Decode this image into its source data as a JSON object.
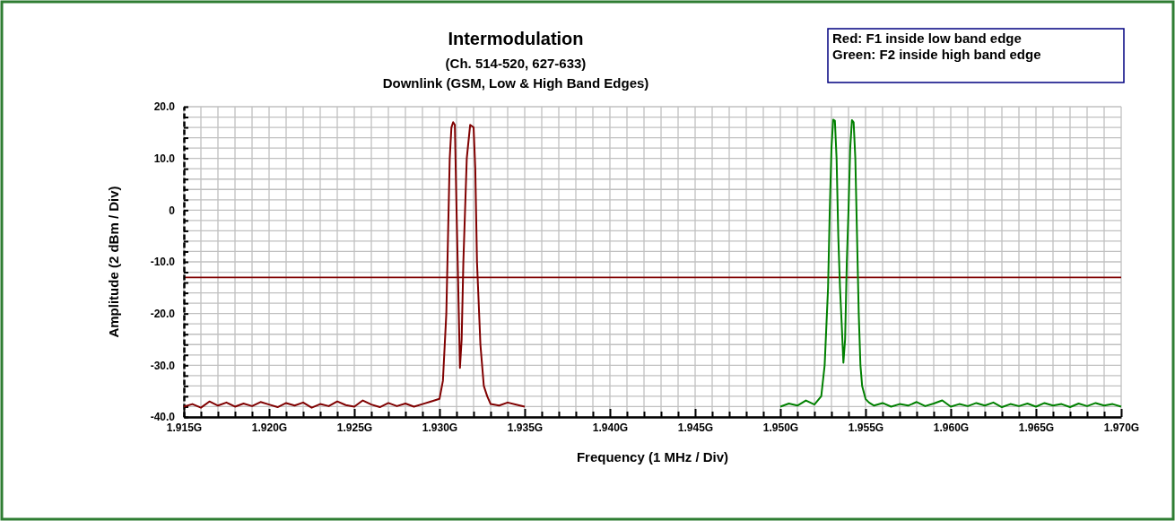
{
  "chart_data": {
    "type": "line",
    "title": "Intermodulation",
    "subtitle": "(Ch. 514-520, 627-633)\nDownlink (GSM, Low & High Band Edges)",
    "xlabel": "Frequency (1 MHz / Div)",
    "ylabel": "Amplitude (2 dBm / Div)",
    "annotations": [
      "Red: F1 inside low band edge",
      "Green: F2 inside high band edge"
    ],
    "xlim": [
      1.915,
      1.97
    ],
    "ylim": [
      -40,
      20
    ],
    "xticks": [
      {
        "value": 1.915,
        "label": "1.915G"
      },
      {
        "value": 1.916,
        "label": null
      },
      {
        "value": 1.917,
        "label": null
      },
      {
        "value": 1.918,
        "label": null
      },
      {
        "value": 1.919,
        "label": null
      },
      {
        "value": 1.92,
        "label": "1.920G"
      },
      {
        "value": 1.921,
        "label": null
      },
      {
        "value": 1.922,
        "label": null
      },
      {
        "value": 1.923,
        "label": null
      },
      {
        "value": 1.924,
        "label": null
      },
      {
        "value": 1.925,
        "label": "1.925G"
      },
      {
        "value": 1.926,
        "label": null
      },
      {
        "value": 1.927,
        "label": null
      },
      {
        "value": 1.928,
        "label": null
      },
      {
        "value": 1.929,
        "label": null
      },
      {
        "value": 1.93,
        "label": "1.930G"
      },
      {
        "value": 1.931,
        "label": null
      },
      {
        "value": 1.932,
        "label": null
      },
      {
        "value": 1.933,
        "label": null
      },
      {
        "value": 1.934,
        "label": null
      },
      {
        "value": 1.935,
        "label": "1.935G"
      },
      {
        "value": 1.936,
        "label": null
      },
      {
        "value": 1.937,
        "label": null
      },
      {
        "value": 1.938,
        "label": null
      },
      {
        "value": 1.939,
        "label": null
      },
      {
        "value": 1.94,
        "label": "1.940G"
      },
      {
        "value": 1.941,
        "label": null
      },
      {
        "value": 1.942,
        "label": null
      },
      {
        "value": 1.943,
        "label": null
      },
      {
        "value": 1.944,
        "label": null
      },
      {
        "value": 1.945,
        "label": "1.945G"
      },
      {
        "value": 1.946,
        "label": null
      },
      {
        "value": 1.947,
        "label": null
      },
      {
        "value": 1.948,
        "label": null
      },
      {
        "value": 1.949,
        "label": null
      },
      {
        "value": 1.95,
        "label": "1.950G"
      },
      {
        "value": 1.951,
        "label": null
      },
      {
        "value": 1.952,
        "label": null
      },
      {
        "value": 1.953,
        "label": null
      },
      {
        "value": 1.954,
        "label": null
      },
      {
        "value": 1.955,
        "label": "1.955G"
      },
      {
        "value": 1.956,
        "label": null
      },
      {
        "value": 1.957,
        "label": null
      },
      {
        "value": 1.958,
        "label": null
      },
      {
        "value": 1.959,
        "label": null
      },
      {
        "value": 1.96,
        "label": "1.960G"
      },
      {
        "value": 1.961,
        "label": null
      },
      {
        "value": 1.962,
        "label": null
      },
      {
        "value": 1.963,
        "label": null
      },
      {
        "value": 1.964,
        "label": null
      },
      {
        "value": 1.965,
        "label": "1.965G"
      },
      {
        "value": 1.966,
        "label": null
      },
      {
        "value": 1.967,
        "label": null
      },
      {
        "value": 1.968,
        "label": null
      },
      {
        "value": 1.969,
        "label": null
      },
      {
        "value": 1.97,
        "label": "1.970G"
      }
    ],
    "yticks": [
      {
        "value": -40,
        "label": "-40.0"
      },
      {
        "value": -38,
        "label": null
      },
      {
        "value": -36,
        "label": null
      },
      {
        "value": -34,
        "label": null
      },
      {
        "value": -32,
        "label": null
      },
      {
        "value": -30,
        "label": "-30.0"
      },
      {
        "value": -28,
        "label": null
      },
      {
        "value": -26,
        "label": null
      },
      {
        "value": -24,
        "label": null
      },
      {
        "value": -22,
        "label": null
      },
      {
        "value": -20,
        "label": "-20.0"
      },
      {
        "value": -18,
        "label": null
      },
      {
        "value": -16,
        "label": null
      },
      {
        "value": -14,
        "label": null
      },
      {
        "value": -12,
        "label": null
      },
      {
        "value": -10,
        "label": "-10.0"
      },
      {
        "value": -8,
        "label": null
      },
      {
        "value": -6,
        "label": null
      },
      {
        "value": -4,
        "label": null
      },
      {
        "value": -2,
        "label": null
      },
      {
        "value": 0,
        "label": "0"
      },
      {
        "value": 2,
        "label": null
      },
      {
        "value": 4,
        "label": null
      },
      {
        "value": 6,
        "label": null
      },
      {
        "value": 8,
        "label": null
      },
      {
        "value": 10,
        "label": "10.0"
      },
      {
        "value": 12,
        "label": null
      },
      {
        "value": 14,
        "label": null
      },
      {
        "value": 16,
        "label": null
      },
      {
        "value": 18,
        "label": null
      },
      {
        "value": 20,
        "label": "20.0"
      }
    ],
    "grid": true,
    "line_style": "solid",
    "marker": "none",
    "ref_lines": [
      {
        "axis": "y",
        "value": -13,
        "color": "#800000"
      }
    ],
    "series": [
      {
        "color": "#800000",
        "x": [
          1.915,
          1.9155,
          1.916,
          1.9165,
          1.917,
          1.9175,
          1.918,
          1.9185,
          1.919,
          1.9195,
          1.92,
          1.9205,
          1.921,
          1.9215,
          1.922,
          1.9225,
          1.923,
          1.9235,
          1.924,
          1.9245,
          1.925,
          1.9255,
          1.926,
          1.9265,
          1.927,
          1.9275,
          1.928,
          1.9285,
          1.929,
          1.9295,
          1.93,
          1.9302,
          1.9304,
          1.9305,
          1.9306,
          1.9307,
          1.9308,
          1.9309,
          1.931,
          1.9311,
          1.9312,
          1.9313,
          1.9314,
          1.9315,
          1.9316,
          1.9318,
          1.932,
          1.9321,
          1.9322,
          1.9324,
          1.9326,
          1.9328,
          1.933,
          1.9335,
          1.934,
          1.9345,
          1.935
        ],
        "values": [
          -38,
          -37.5,
          -38.2,
          -37,
          -37.8,
          -37.2,
          -38,
          -37.4,
          -37.9,
          -37.1,
          -37.6,
          -38.1,
          -37.3,
          -37.8,
          -37.2,
          -38.2,
          -37.5,
          -37.9,
          -37,
          -37.7,
          -38,
          -36.8,
          -37.6,
          -38.1,
          -37.3,
          -37.9,
          -37.4,
          -38,
          -37.5,
          -37,
          -36.5,
          -33,
          -20,
          -5,
          10,
          16,
          17,
          16.5,
          0,
          -15,
          -30.5,
          -25,
          -10,
          0,
          10,
          16.5,
          16,
          8,
          -10,
          -26,
          -34,
          -36,
          -37.5,
          -37.8,
          -37.2,
          -37.6,
          -38
        ]
      },
      {
        "color": "#008000",
        "x": [
          1.95,
          1.9505,
          1.951,
          1.9515,
          1.952,
          1.9524,
          1.9526,
          1.9528,
          1.9529,
          1.953,
          1.9531,
          1.9532,
          1.9533,
          1.9534,
          1.9535,
          1.9536,
          1.9537,
          1.9538,
          1.9539,
          1.954,
          1.9541,
          1.9542,
          1.9543,
          1.9544,
          1.9545,
          1.9546,
          1.9547,
          1.9548,
          1.955,
          1.9552,
          1.9555,
          1.956,
          1.9565,
          1.957,
          1.9575,
          1.958,
          1.9585,
          1.959,
          1.9595,
          1.96,
          1.9605,
          1.961,
          1.9615,
          1.962,
          1.9625,
          1.963,
          1.9635,
          1.964,
          1.9645,
          1.965,
          1.9655,
          1.966,
          1.9665,
          1.967,
          1.9675,
          1.968,
          1.9685,
          1.969,
          1.9695,
          1.97
        ],
        "values": [
          -38,
          -37.4,
          -37.8,
          -36.8,
          -37.6,
          -36,
          -30,
          -15,
          0,
          12,
          17.5,
          17.3,
          10,
          -5,
          -15,
          -22,
          -29.5,
          -25,
          -10,
          0,
          12,
          17.4,
          17,
          10,
          -5,
          -20,
          -30,
          -34,
          -36.5,
          -37.2,
          -37.8,
          -37.3,
          -38,
          -37.5,
          -37.8,
          -37.1,
          -37.9,
          -37.4,
          -36.8,
          -38,
          -37.5,
          -37.9,
          -37.3,
          -37.8,
          -37.2,
          -38.1,
          -37.5,
          -37.9,
          -37.4,
          -38,
          -37.3,
          -37.8,
          -37.5,
          -38.1,
          -37.4,
          -37.9,
          -37.3,
          -37.8,
          -37.5,
          -38
        ]
      }
    ]
  }
}
